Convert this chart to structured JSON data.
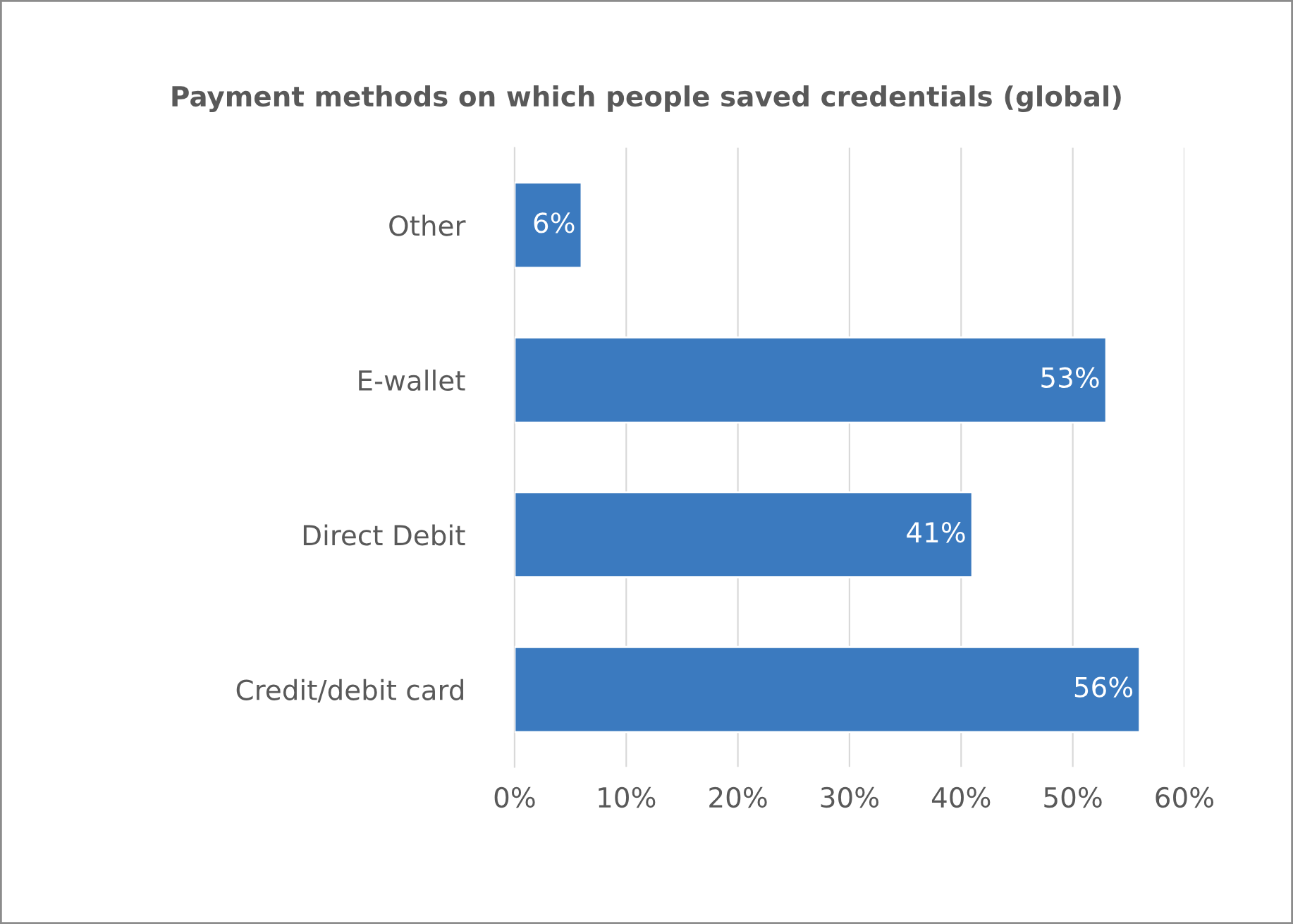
{
  "chart_data": {
    "type": "bar",
    "orientation": "horizontal",
    "title": "Payment methods on which people saved credentials (global)",
    "categories": [
      "Other",
      "E-wallet",
      "Direct Debit",
      "Credit/debit card"
    ],
    "values": [
      6,
      53,
      41,
      56
    ],
    "value_labels": [
      "6%",
      "53%",
      "41%",
      "56%"
    ],
    "color": "#3b7abf",
    "xlim": [
      0,
      60
    ],
    "xticks": [
      {
        "value": 0,
        "label": "0%"
      },
      {
        "value": 10,
        "label": "10%"
      },
      {
        "value": 20,
        "label": "20%"
      },
      {
        "value": 30,
        "label": "30%"
      },
      {
        "value": 40,
        "label": "40%"
      },
      {
        "value": 50,
        "label": "50%"
      },
      {
        "value": 60,
        "label": "60%"
      }
    ],
    "grid": "x",
    "legend": false
  }
}
